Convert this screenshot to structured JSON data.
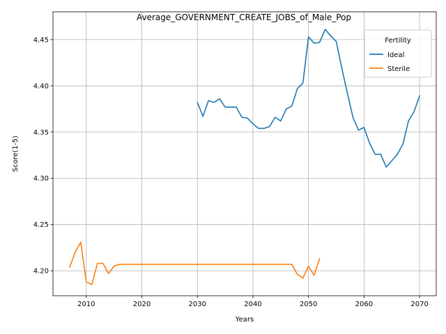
{
  "chart_data": {
    "type": "line",
    "title": "Average_GOVERNMENT_CREATE_JOBS_of_Male_Pop",
    "xlabel": "Years",
    "ylabel": "Score(1-5)",
    "xlim": [
      2004,
      2073
    ],
    "ylim": [
      4.173,
      4.48
    ],
    "xticks": [
      2010,
      2020,
      2030,
      2040,
      2050,
      2060,
      2070
    ],
    "yticks": [
      4.2,
      4.25,
      4.3,
      4.35,
      4.4,
      4.45
    ],
    "ytick_labels": [
      "4.20",
      "4.25",
      "4.30",
      "4.35",
      "4.40",
      "4.45"
    ],
    "grid": true,
    "legend": {
      "title": "Fertility",
      "placement": "top-right"
    },
    "series": [
      {
        "name": "Ideal",
        "color": "#1f77b4",
        "x": [
          2030,
          2031,
          2032,
          2033,
          2034,
          2035,
          2036,
          2037,
          2038,
          2039,
          2040,
          2041,
          2042,
          2043,
          2044,
          2045,
          2046,
          2047,
          2048,
          2049,
          2050,
          2051,
          2052,
          2053,
          2054,
          2055,
          2056,
          2057,
          2058,
          2059,
          2060,
          2061,
          2062,
          2063,
          2064,
          2065,
          2066,
          2067,
          2068,
          2069,
          2070
        ],
        "values": [
          4.382,
          4.367,
          4.384,
          4.382,
          4.386,
          4.377,
          4.377,
          4.377,
          4.366,
          4.365,
          4.359,
          4.354,
          4.354,
          4.356,
          4.366,
          4.362,
          4.375,
          4.378,
          4.397,
          4.403,
          4.453,
          4.446,
          4.447,
          4.461,
          4.454,
          4.448,
          4.419,
          4.392,
          4.366,
          4.352,
          4.355,
          4.338,
          4.326,
          4.326,
          4.312,
          4.319,
          4.326,
          4.337,
          4.362,
          4.372,
          4.389
        ]
      },
      {
        "name": "Sterile",
        "color": "#ff7f0e",
        "x": [
          2007,
          2008,
          2009,
          2010,
          2011,
          2012,
          2013,
          2014,
          2015,
          2016,
          2017,
          2018,
          2019,
          2020,
          2021,
          2022,
          2023,
          2024,
          2025,
          2026,
          2027,
          2028,
          2029,
          2030,
          2031,
          2032,
          2033,
          2034,
          2035,
          2036,
          2037,
          2038,
          2039,
          2040,
          2041,
          2042,
          2043,
          2044,
          2045,
          2046,
          2047,
          2048,
          2049,
          2050,
          2051,
          2052
        ],
        "values": [
          4.204,
          4.22,
          4.231,
          4.188,
          4.185,
          4.208,
          4.208,
          4.197,
          4.205,
          4.207,
          4.207,
          4.207,
          4.207,
          4.207,
          4.207,
          4.207,
          4.207,
          4.207,
          4.207,
          4.207,
          4.207,
          4.207,
          4.207,
          4.207,
          4.207,
          4.207,
          4.207,
          4.207,
          4.207,
          4.207,
          4.207,
          4.207,
          4.207,
          4.207,
          4.207,
          4.207,
          4.207,
          4.207,
          4.207,
          4.207,
          4.207,
          4.196,
          4.192,
          4.205,
          4.195,
          4.213
        ]
      }
    ]
  }
}
